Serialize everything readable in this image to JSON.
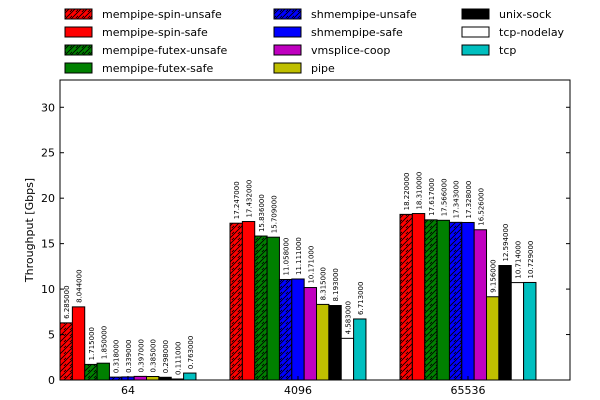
{
  "chart_data": {
    "type": "bar",
    "title": "",
    "xlabel": "",
    "ylabel": "Throughput [Gbps]",
    "ylim": [
      0,
      33
    ],
    "yticks": [
      0,
      5,
      10,
      15,
      20,
      25,
      30
    ],
    "categories": [
      "64",
      "4096",
      "65536"
    ],
    "legend_position": "top",
    "series": [
      {
        "name": "mempipe-spin-unsafe",
        "color": "#ff0000",
        "hatch": true,
        "values": [
          6.285,
          17.247,
          18.22
        ],
        "labels": [
          "6.285000",
          "17.247000",
          "18.220000"
        ]
      },
      {
        "name": "mempipe-spin-safe",
        "color": "#ff0000",
        "hatch": false,
        "values": [
          8.044,
          17.432,
          18.31
        ],
        "labels": [
          "8.044000",
          "17.432000",
          "18.310000"
        ]
      },
      {
        "name": "mempipe-futex-unsafe",
        "color": "#008000",
        "hatch": true,
        "values": [
          1.715,
          15.836,
          17.617
        ],
        "labels": [
          "1.715000",
          "15.836000",
          "17.617000"
        ]
      },
      {
        "name": "mempipe-futex-safe",
        "color": "#008000",
        "hatch": false,
        "values": [
          1.85,
          15.709,
          17.566
        ],
        "labels": [
          "1.850000",
          "15.709000",
          "17.566000"
        ]
      },
      {
        "name": "shmempipe-unsafe",
        "color": "#0000ff",
        "hatch": true,
        "values": [
          0.318,
          11.058,
          17.343
        ],
        "labels": [
          "0.318000",
          "11.058000",
          "17.343000"
        ]
      },
      {
        "name": "shmempipe-safe",
        "color": "#0000ff",
        "hatch": false,
        "values": [
          0.339,
          11.111,
          17.328
        ],
        "labels": [
          "0.339000",
          "11.111000",
          "17.328000"
        ]
      },
      {
        "name": "vmsplice-coop",
        "color": "#bf00bf",
        "hatch": false,
        "values": [
          0.397,
          10.171,
          16.526
        ],
        "labels": [
          "0.397000",
          "10.171000",
          "16.526000"
        ]
      },
      {
        "name": "pipe",
        "color": "#bfbf00",
        "hatch": false,
        "values": [
          0.385,
          8.315,
          9.156
        ],
        "labels": [
          "0.385000",
          "8.315000",
          "9.156000"
        ]
      },
      {
        "name": "unix-sock",
        "color": "#000000",
        "hatch": false,
        "values": [
          0.298,
          8.193,
          12.594
        ],
        "labels": [
          "0.298000",
          "8.193000",
          "12.594000"
        ]
      },
      {
        "name": "tcp-nodelay",
        "color": "#ffffff",
        "hatch": false,
        "values": [
          0.111,
          4.583,
          10.714
        ],
        "labels": [
          "0.111000",
          "4.583000",
          "10.714000"
        ]
      },
      {
        "name": "tcp",
        "color": "#00bfbf",
        "hatch": false,
        "values": [
          0.763,
          6.713,
          10.729
        ],
        "labels": [
          "0.763000",
          "6.713000",
          "10.729000"
        ]
      }
    ]
  }
}
